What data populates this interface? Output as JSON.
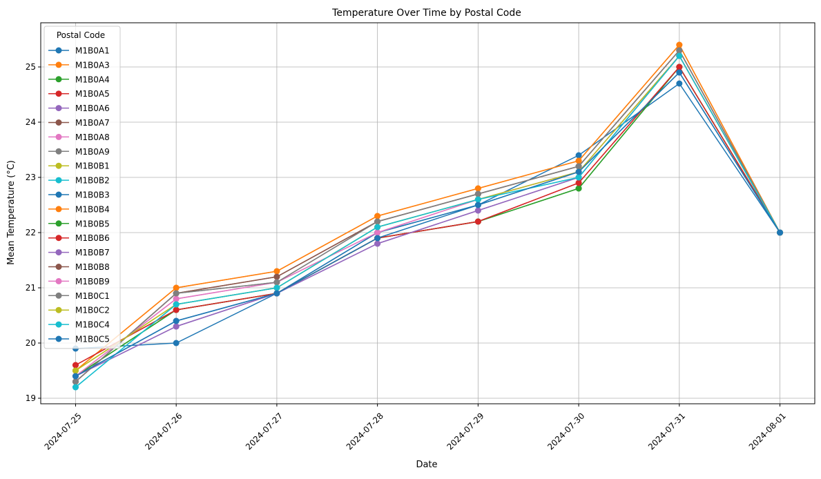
{
  "chart_data": {
    "type": "line",
    "title": "Temperature Over Time by Postal Code",
    "xlabel": "Date",
    "ylabel": "Mean Temperature (°C)",
    "x": [
      "2024-07-25",
      "2024-07-26",
      "2024-07-27",
      "2024-07-28",
      "2024-07-29",
      "2024-07-30",
      "2024-07-31",
      "2024-08-01"
    ],
    "ylim": [
      18.9,
      25.8
    ],
    "yticks": [
      19,
      20,
      21,
      22,
      23,
      24,
      25
    ],
    "grid": true,
    "legend_title": "Postal Code",
    "legend_position": "top-left",
    "series": [
      {
        "name": "M1B0A1",
        "color": "#1f77b4",
        "values": [
          19.9,
          20.0,
          20.9,
          22.0,
          22.5,
          23.4,
          24.7,
          22.0
        ]
      },
      {
        "name": "M1B0A3",
        "color": "#ff7f0e",
        "values": [
          19.5,
          21.0,
          21.3,
          22.3,
          22.8,
          23.3,
          25.4,
          22.0
        ]
      },
      {
        "name": "M1B0A4",
        "color": "#2ca02c",
        "values": [
          19.4,
          20.6,
          20.9,
          21.9,
          22.2,
          22.8,
          25.0,
          22.0
        ]
      },
      {
        "name": "M1B0A5",
        "color": "#d62728",
        "values": [
          19.6,
          20.6,
          20.9,
          21.9,
          22.2,
          22.9,
          25.0,
          22.0
        ]
      },
      {
        "name": "M1B0A6",
        "color": "#9467bd",
        "values": [
          19.4,
          20.3,
          20.9,
          21.8,
          22.4,
          23.0,
          25.2,
          22.0
        ]
      },
      {
        "name": "M1B0A7",
        "color": "#8c564b",
        "values": [
          19.3,
          20.9,
          21.2,
          22.2,
          22.7,
          23.2,
          25.3,
          22.0
        ]
      },
      {
        "name": "M1B0A8",
        "color": "#e377c2",
        "values": [
          19.4,
          20.8,
          21.1,
          22.0,
          22.6,
          23.1,
          25.2,
          22.0
        ]
      },
      {
        "name": "M1B0A9",
        "color": "#7f7f7f",
        "values": [
          19.3,
          20.9,
          21.1,
          22.2,
          22.7,
          23.2,
          25.3,
          22.0
        ]
      },
      {
        "name": "M1B0B1",
        "color": "#bcbd22",
        "values": [
          19.5,
          20.7,
          21.0,
          22.1,
          22.6,
          23.1,
          25.2,
          22.0
        ]
      },
      {
        "name": "M1B0B2",
        "color": "#17becf",
        "values": [
          19.2,
          20.7,
          21.0,
          22.1,
          22.6,
          23.0,
          25.2,
          22.0
        ]
      },
      {
        "name": "M1B0B3",
        "color": "#1f77b4",
        "values": [
          19.4,
          20.4,
          20.9,
          22.0,
          22.5,
          23.1,
          24.9,
          22.0
        ]
      },
      {
        "name": "M1B0B4",
        "color": "#ff7f0e",
        "values": [
          19.5,
          21.0,
          21.3,
          22.3,
          22.8,
          23.3,
          25.4,
          22.0
        ]
      },
      {
        "name": "M1B0B5",
        "color": "#2ca02c",
        "values": [
          19.4,
          20.6,
          20.9,
          21.9,
          22.2,
          22.8,
          25.0,
          22.0
        ]
      },
      {
        "name": "M1B0B6",
        "color": "#d62728",
        "values": [
          19.6,
          20.6,
          20.9,
          21.9,
          22.2,
          22.9,
          25.0,
          22.0
        ]
      },
      {
        "name": "M1B0B7",
        "color": "#9467bd",
        "values": [
          19.4,
          20.3,
          20.9,
          21.8,
          22.4,
          23.0,
          25.2,
          22.0
        ]
      },
      {
        "name": "M1B0B8",
        "color": "#8c564b",
        "values": [
          19.3,
          20.9,
          21.2,
          22.2,
          22.7,
          23.2,
          25.3,
          22.0
        ]
      },
      {
        "name": "M1B0B9",
        "color": "#e377c2",
        "values": [
          19.4,
          20.8,
          21.1,
          22.0,
          22.6,
          23.1,
          25.2,
          22.0
        ]
      },
      {
        "name": "M1B0C1",
        "color": "#7f7f7f",
        "values": [
          19.3,
          20.9,
          21.1,
          22.2,
          22.7,
          23.2,
          25.3,
          22.0
        ]
      },
      {
        "name": "M1B0C2",
        "color": "#bcbd22",
        "values": [
          19.5,
          20.7,
          21.0,
          22.1,
          22.6,
          23.1,
          25.2,
          22.0
        ]
      },
      {
        "name": "M1B0C4",
        "color": "#17becf",
        "values": [
          19.2,
          20.7,
          21.0,
          22.1,
          22.6,
          23.0,
          25.2,
          22.0
        ]
      },
      {
        "name": "M1B0C5",
        "color": "#1f77b4",
        "values": [
          19.4,
          20.4,
          20.9,
          21.9,
          22.5,
          23.1,
          24.9,
          22.0
        ]
      }
    ]
  }
}
